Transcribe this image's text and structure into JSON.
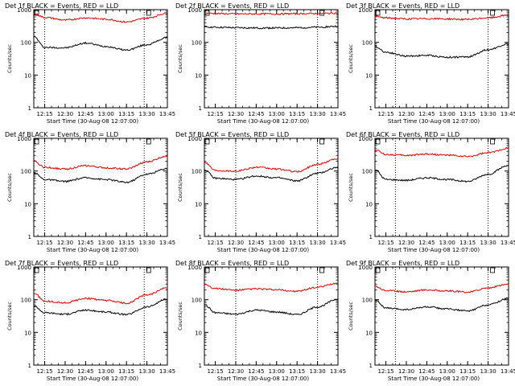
{
  "colors": {
    "events": "#000000",
    "lld": "#e00000",
    "axis": "#000000",
    "dotted": "#000000"
  },
  "chart_data": [
    {
      "type": "line",
      "title": "Det 1f BLACK = Events, RED = LLD",
      "xlabel": "Start Time (30-Aug-08 12:07:00)",
      "ylabel": "Counts/sec",
      "yscale": "log",
      "ylim": [
        1,
        1000
      ],
      "y_ticks": [
        "1",
        "10",
        "100",
        "1000"
      ],
      "x_ticks": [
        "12:15",
        "12:30",
        "12:45",
        "13:00",
        "13:15",
        "13:30",
        "13:45"
      ],
      "x": [
        "12:07",
        "12:15",
        "12:30",
        "12:45",
        "13:00",
        "13:15",
        "13:30",
        "13:45"
      ],
      "series": [
        {
          "name": "Events",
          "color": "#000000",
          "values": [
            150,
            70,
            68,
            95,
            75,
            58,
            85,
            140
          ]
        },
        {
          "name": "LLD",
          "color": "#e00000",
          "values": [
            750,
            580,
            480,
            560,
            510,
            420,
            550,
            780
          ]
        }
      ],
      "vlines": [
        "12:15",
        "13:28"
      ],
      "grid": false
    },
    {
      "type": "line",
      "title": "Det 2f BLACK = Events, RED = LLD",
      "xlabel": "Start Time (30-Aug-08 12:07:00)",
      "ylabel": "Counts/sec",
      "yscale": "log",
      "ylim": [
        1,
        1000
      ],
      "y_ticks": [
        "1",
        "10",
        "100",
        "1000"
      ],
      "x_ticks": [
        "12:15",
        "12:30",
        "12:45",
        "13:00",
        "13:15",
        "13:30",
        "13:45"
      ],
      "x": [
        "12:07",
        "12:15",
        "12:30",
        "12:45",
        "13:00",
        "13:15",
        "13:30",
        "13:45"
      ],
      "series": [
        {
          "name": "Events",
          "color": "#000000",
          "values": [
            300,
            290,
            280,
            275,
            275,
            280,
            290,
            310
          ]
        },
        {
          "name": "LLD",
          "color": "#e00000",
          "values": [
            780,
            760,
            740,
            740,
            740,
            750,
            760,
            790
          ]
        }
      ],
      "vlines": [
        "12:30",
        "13:30"
      ],
      "grid": false
    },
    {
      "type": "line",
      "title": "Det 3f BLACK = Events, RED = LLD",
      "xlabel": "Start Time (30-Aug-08 12:07:00)",
      "ylabel": "Counts/sec",
      "yscale": "log",
      "ylim": [
        1,
        1000
      ],
      "y_ticks": [
        "1",
        "10",
        "100",
        "1000"
      ],
      "x_ticks": [
        "12:15",
        "12:30",
        "12:45",
        "13:00",
        "13:15",
        "13:30",
        "13:45"
      ],
      "x": [
        "12:07",
        "12:15",
        "12:30",
        "12:45",
        "13:00",
        "13:15",
        "13:30",
        "13:45"
      ],
      "series": [
        {
          "name": "Events",
          "color": "#000000",
          "values": [
            75,
            50,
            38,
            40,
            35,
            36,
            60,
            90
          ]
        },
        {
          "name": "LLD",
          "color": "#e00000",
          "values": [
            620,
            560,
            520,
            530,
            520,
            500,
            560,
            680
          ]
        }
      ],
      "vlines": [
        "12:22",
        "13:30"
      ],
      "grid": false
    },
    {
      "type": "line",
      "title": "Det 4f BLACK = Events, RED = LLD",
      "xlabel": "Start Time (30-Aug-08 12:07:00)",
      "ylabel": "Counts/sec",
      "yscale": "log",
      "ylim": [
        1,
        1000
      ],
      "y_ticks": [
        "1",
        "10",
        "100",
        "1000"
      ],
      "x_ticks": [
        "12:15",
        "12:30",
        "12:45",
        "13:00",
        "13:15",
        "13:30",
        "13:45"
      ],
      "x": [
        "12:07",
        "12:15",
        "12:30",
        "12:45",
        "13:00",
        "13:15",
        "13:30",
        "13:45"
      ],
      "series": [
        {
          "name": "Events",
          "color": "#000000",
          "values": [
            90,
            55,
            48,
            62,
            55,
            45,
            80,
            120
          ]
        },
        {
          "name": "LLD",
          "color": "#e00000",
          "values": [
            200,
            130,
            115,
            145,
            125,
            115,
            190,
            290
          ]
        }
      ],
      "vlines": [
        "12:15",
        "13:28"
      ],
      "grid": false
    },
    {
      "type": "line",
      "title": "Det 5f BLACK = Events, RED = LLD",
      "xlabel": "Start Time (30-Aug-08 12:07:00)",
      "ylabel": "Counts/sec",
      "yscale": "log",
      "ylim": [
        1,
        1000
      ],
      "y_ticks": [
        "1",
        "10",
        "100",
        "1000"
      ],
      "x_ticks": [
        "12:15",
        "12:30",
        "12:45",
        "13:00",
        "13:15",
        "13:30",
        "13:45"
      ],
      "x": [
        "12:07",
        "12:15",
        "12:30",
        "12:45",
        "13:00",
        "13:15",
        "13:30",
        "13:45"
      ],
      "series": [
        {
          "name": "Events",
          "color": "#000000",
          "values": [
            110,
            60,
            55,
            70,
            62,
            50,
            85,
            130
          ]
        },
        {
          "name": "LLD",
          "color": "#e00000",
          "values": [
            190,
            105,
            100,
            130,
            115,
            95,
            160,
            240
          ]
        }
      ],
      "vlines": [
        "12:30",
        "13:30"
      ],
      "grid": false
    },
    {
      "type": "line",
      "title": "Det 6f BLACK = Events, RED = LLD",
      "xlabel": "Start Time (30-Aug-08 12:07:00)",
      "ylabel": "Counts/sec",
      "yscale": "log",
      "ylim": [
        1,
        1000
      ],
      "y_ticks": [
        "1",
        "10",
        "100",
        "1000"
      ],
      "x_ticks": [
        "12:15",
        "12:30",
        "12:45",
        "13:00",
        "13:15",
        "13:30",
        "13:45"
      ],
      "x": [
        "12:07",
        "12:15",
        "12:30",
        "12:45",
        "13:00",
        "13:15",
        "13:30",
        "13:45"
      ],
      "series": [
        {
          "name": "Events",
          "color": "#000000",
          "values": [
            110,
            55,
            52,
            62,
            55,
            48,
            80,
            150
          ]
        },
        {
          "name": "LLD",
          "color": "#e00000",
          "values": [
            450,
            320,
            300,
            330,
            305,
            275,
            360,
            500
          ]
        }
      ],
      "vlines": [
        "12:22",
        "13:30"
      ],
      "grid": false
    },
    {
      "type": "line",
      "title": "Det 7f BLACK = Events, RED = LLD",
      "xlabel": "Start Time (30-Aug-08 12:07:00)",
      "ylabel": "Counts/sec",
      "yscale": "log",
      "ylim": [
        1,
        1000
      ],
      "y_ticks": [
        "1",
        "10",
        "100",
        "1000"
      ],
      "x_ticks": [
        "12:15",
        "12:30",
        "12:45",
        "13:00",
        "13:15",
        "13:30",
        "13:45"
      ],
      "x": [
        "12:07",
        "12:15",
        "12:30",
        "12:45",
        "13:00",
        "13:15",
        "13:30",
        "13:45"
      ],
      "series": [
        {
          "name": "Events",
          "color": "#000000",
          "values": [
            65,
            40,
            36,
            48,
            42,
            35,
            60,
            105
          ]
        },
        {
          "name": "LLD",
          "color": "#e00000",
          "values": [
            160,
            90,
            80,
            110,
            95,
            78,
            140,
            230
          ]
        }
      ],
      "vlines": [
        "12:15",
        "13:28"
      ],
      "grid": false
    },
    {
      "type": "line",
      "title": "Det 8f BLACK = Events, RED = LLD",
      "xlabel": "Start Time (30-Aug-08 12:07:00)",
      "ylabel": "Counts/sec",
      "yscale": "log",
      "ylim": [
        1,
        1000
      ],
      "y_ticks": [
        "1",
        "10",
        "100",
        "1000"
      ],
      "x_ticks": [
        "12:15",
        "12:30",
        "12:45",
        "13:00",
        "13:15",
        "13:30",
        "13:45"
      ],
      "x": [
        "12:07",
        "12:15",
        "12:30",
        "12:45",
        "13:00",
        "13:15",
        "13:30",
        "13:45"
      ],
      "series": [
        {
          "name": "Events",
          "color": "#000000",
          "values": [
            70,
            40,
            36,
            48,
            42,
            35,
            60,
            105
          ]
        },
        {
          "name": "LLD",
          "color": "#e00000",
          "values": [
            300,
            220,
            195,
            215,
            200,
            180,
            240,
            320
          ]
        }
      ],
      "vlines": [
        "12:30",
        "13:30"
      ],
      "grid": false
    },
    {
      "type": "line",
      "title": "Det 9f BLACK = Events, RED = LLD",
      "xlabel": "Start Time (30-Aug-08 12:07:00)",
      "ylabel": "Counts/sec",
      "yscale": "log",
      "ylim": [
        1,
        1000
      ],
      "y_ticks": [
        "1",
        "10",
        "100",
        "1000"
      ],
      "x_ticks": [
        "12:15",
        "12:30",
        "12:45",
        "13:00",
        "13:15",
        "13:30",
        "13:45"
      ],
      "x": [
        "12:07",
        "12:15",
        "12:30",
        "12:45",
        "13:00",
        "13:15",
        "13:30",
        "13:45"
      ],
      "series": [
        {
          "name": "Events",
          "color": "#000000",
          "values": [
            100,
            55,
            50,
            60,
            52,
            45,
            70,
            110
          ]
        },
        {
          "name": "LLD",
          "color": "#e00000",
          "values": [
            260,
            190,
            175,
            200,
            185,
            170,
            230,
            300
          ]
        }
      ],
      "vlines": [
        "12:22",
        "13:30"
      ],
      "grid": false
    }
  ]
}
